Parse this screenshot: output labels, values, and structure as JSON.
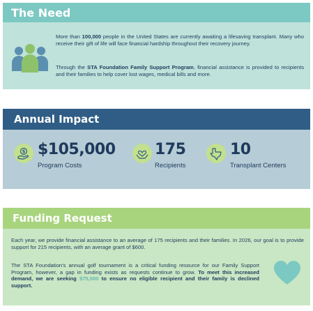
{
  "need": {
    "title": "The Need",
    "p1": {
      "pre": "More than ",
      "bold": "100,000",
      "post": " people in the United States are currently awaiting a lifesaving transplant. Many who receive their gift of life will face financial hardship throughout their recovery journey."
    },
    "p2": {
      "pre": "Through the ",
      "bold": "STA Foundation Family Support Program",
      "post": ", financial assistance is provided to recipients and their families to help cover lost wages, medical bills and more."
    },
    "icon": "people-group-icon"
  },
  "impact": {
    "title": "Annual Impact",
    "stats": [
      {
        "value": "$105,000",
        "label": "Program Costs",
        "icon": "money-hand-icon"
      },
      {
        "value": "175",
        "label": "Recipients",
        "icon": "heart-hands-icon"
      },
      {
        "value": "10",
        "label": "Transplant Centers",
        "icon": "texas-map-icon"
      }
    ]
  },
  "funding": {
    "title": "Funding Request",
    "p1": "Each year, we provide financial assistance to an average of 175 recipients and their families. In 2026, our goal is to provide support for 215 recipients, with an average grant of $600.",
    "p2": {
      "pre": "The STA Foundation's annual golf tournament is a critical funding resource for our Family Support Program, however, a gap in funding exists as requests continue to grow. ",
      "bold1": "To meet this increased demand, we are seeking ",
      "amount": "$75,000",
      "bold2": " to ensure no eligible recipient and their family is declined support."
    },
    "icon": "heart-icon"
  },
  "colors": {
    "need_header": "#7cc8c2",
    "need_body": "#bfe2db",
    "impact_header": "#2f5d85",
    "impact_body": "#b6ccd6",
    "funding_header": "#a8d47e",
    "funding_body": "#c9e7c4",
    "text": "#1f3a5c",
    "accent_teal": "#67b7ad"
  }
}
